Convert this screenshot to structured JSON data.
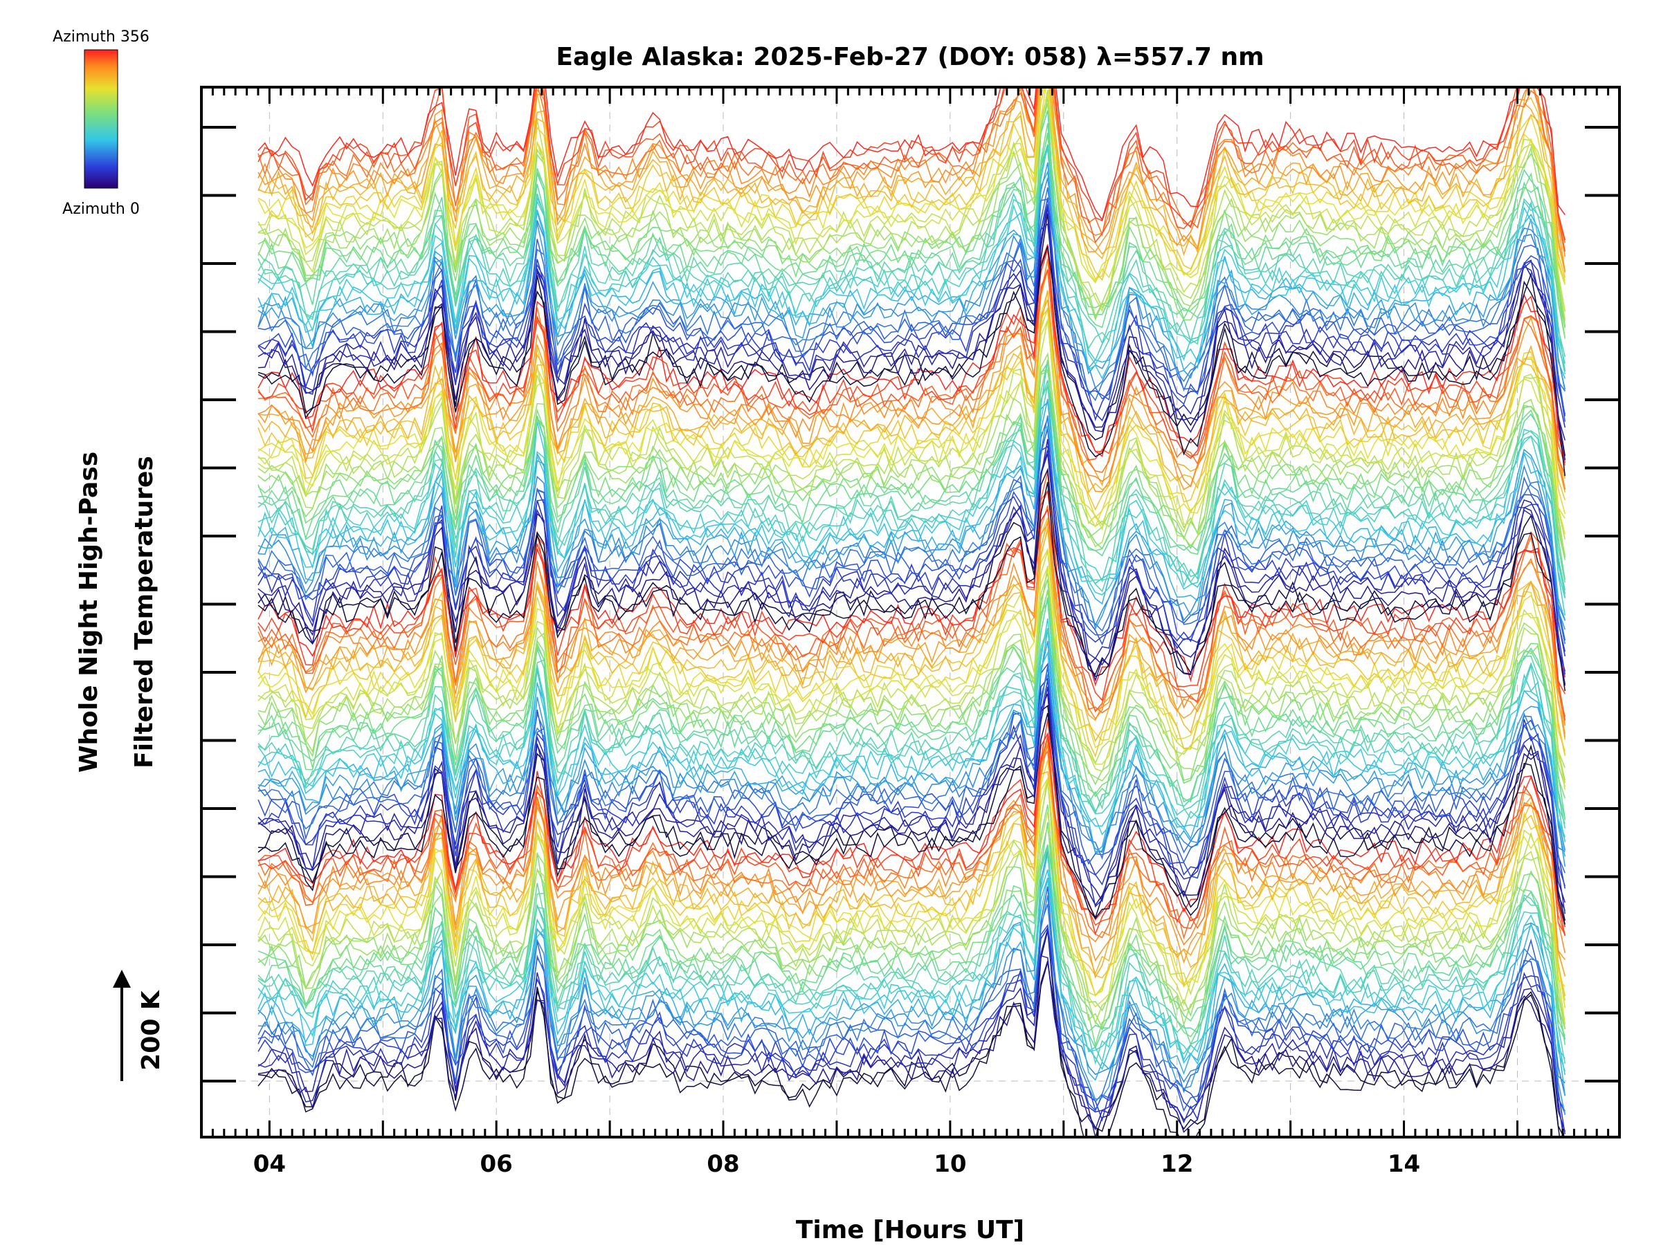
{
  "chart_data": {
    "type": "line",
    "title": "Eagle Alaska: 2025-Feb-27 (DOY: 058) λ=557.7 nm",
    "xlabel": "Time [Hours UT]",
    "ylabel_line1": "Whole Night High-Pass",
    "ylabel_line2": "Filtered Temperatures",
    "scale_label": "200 K",
    "xlim": [
      3.4,
      15.9
    ],
    "x_ticks": [
      "04",
      "06",
      "08",
      "10",
      "12",
      "14"
    ],
    "x_tick_values": [
      4,
      6,
      8,
      10,
      12,
      14
    ],
    "legend_top": "Azimuth 356",
    "legend_bottom": "Azimuth 0",
    "time_range": [
      3.9,
      15.45
    ],
    "series_count": 144,
    "azimuth_range": [
      0,
      356
    ],
    "grid": true,
    "colors": {
      "background": "#ffffff",
      "axis": "#000000",
      "grid": "#bbbbbb"
    }
  }
}
